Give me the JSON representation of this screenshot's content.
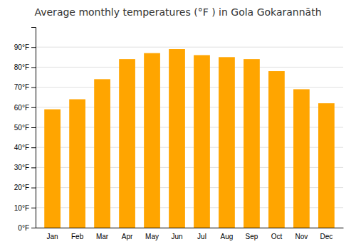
{
  "chart_data": {
    "type": "bar",
    "title": "Average monthly temperatures (°F ) in Gola Gokarannāth",
    "categories": [
      "Jan",
      "Feb",
      "Mar",
      "Apr",
      "May",
      "Jun",
      "Jul",
      "Aug",
      "Sep",
      "Oct",
      "Nov",
      "Dec"
    ],
    "values": [
      59,
      64,
      74,
      84,
      87,
      89,
      86,
      85,
      84,
      78,
      69,
      62
    ],
    "color": "#FFA500",
    "ylim": [
      0,
      100
    ],
    "yticks": [
      {
        "value": 0,
        "label": "0°F"
      },
      {
        "value": 10,
        "label": "10°F"
      },
      {
        "value": 20,
        "label": "20°F"
      },
      {
        "value": 30,
        "label": "30°F"
      },
      {
        "value": 40,
        "label": "40°F"
      },
      {
        "value": 50,
        "label": "50°F"
      },
      {
        "value": 60,
        "label": "60°F"
      },
      {
        "value": 70,
        "label": "70°F"
      },
      {
        "value": 80,
        "label": "80°F"
      },
      {
        "value": 90,
        "label": "90°F"
      }
    ],
    "grid": true
  }
}
